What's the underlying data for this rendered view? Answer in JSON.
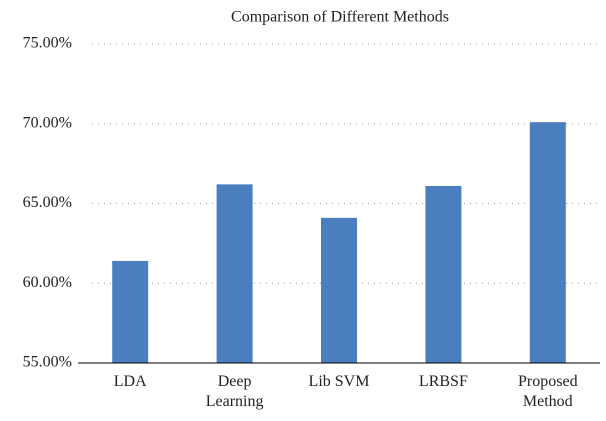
{
  "chart_data": {
    "type": "bar",
    "title": "Comparison of Different Methods",
    "categories": [
      "LDA",
      "Deep Learning",
      "Lib SVM",
      "LRBSF",
      "Proposed Method"
    ],
    "values": [
      61.4,
      66.2,
      64.1,
      66.1,
      70.1
    ],
    "color": "#4a7ebf",
    "ylim": [
      55,
      75
    ],
    "yticks": [
      {
        "value": 55,
        "label": "55.00%"
      },
      {
        "value": 60,
        "label": "60.00%"
      },
      {
        "value": 65,
        "label": "65.00%"
      },
      {
        "value": 70,
        "label": "70.00%"
      },
      {
        "value": 75,
        "label": "75.00%"
      }
    ],
    "grid": true
  }
}
